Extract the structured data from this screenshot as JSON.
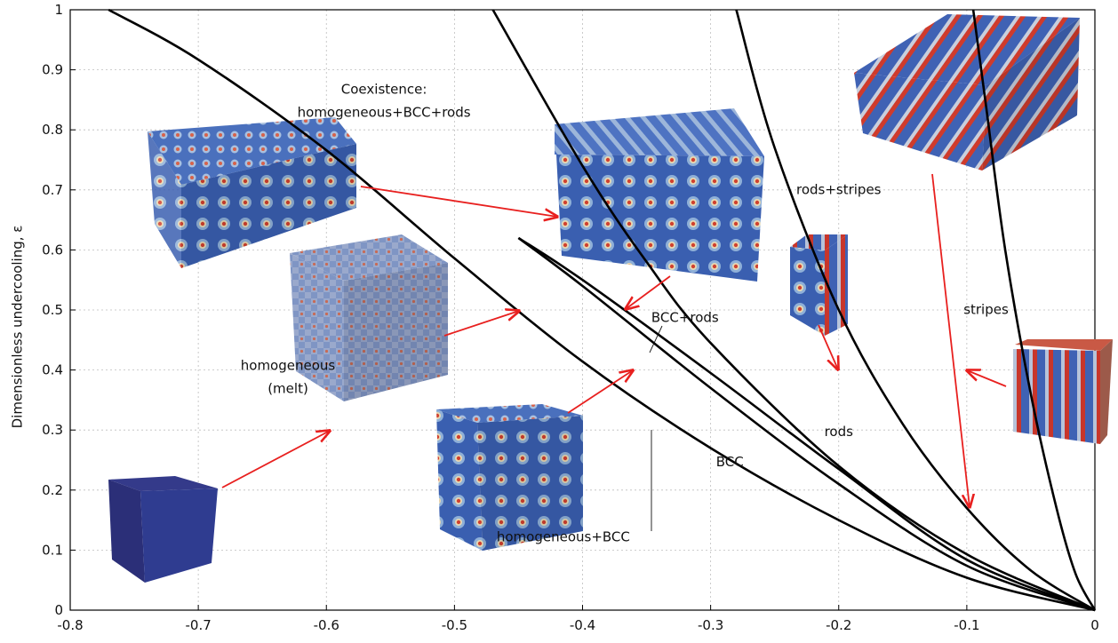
{
  "chart_data": {
    "type": "line",
    "title": "",
    "xlabel": "",
    "ylabel": "Dimensionless undercooling, ε",
    "xlim": [
      -0.8,
      0
    ],
    "ylim": [
      0,
      1
    ],
    "xticks": [
      "-0.8",
      "-0.7",
      "-0.6",
      "-0.5",
      "-0.4",
      "-0.3",
      "-0.2",
      "-0.1",
      "0"
    ],
    "yticks": [
      "0",
      "0.1",
      "0.2",
      "0.3",
      "0.4",
      "0.5",
      "0.6",
      "0.7",
      "0.8",
      "0.9",
      "1"
    ],
    "grid": true,
    "series": [
      {
        "x": [
          -0.77,
          -0.7,
          -0.6,
          -0.5,
          -0.4,
          -0.3,
          -0.2,
          -0.1,
          0
        ],
        "y": [
          1.0,
          0.917,
          0.766,
          0.586,
          0.414,
          0.27,
          0.15,
          0.054,
          0
        ]
      },
      {
        "x": [
          -0.45,
          -0.4,
          -0.3,
          -0.2,
          -0.1,
          0
        ],
        "y": [
          0.62,
          0.55,
          0.395,
          0.235,
          0.084,
          0
        ]
      },
      {
        "x": [
          -0.45,
          -0.4,
          -0.3,
          -0.2,
          -0.1,
          0
        ],
        "y": [
          0.62,
          0.54,
          0.37,
          0.21,
          0.074,
          0
        ]
      },
      {
        "x": [
          -0.47,
          -0.4,
          -0.35,
          -0.3,
          -0.2,
          -0.1,
          0
        ],
        "y": [
          1.0,
          0.74,
          0.58,
          0.445,
          0.24,
          0.093,
          0
        ]
      },
      {
        "x": [
          -0.28,
          -0.25,
          -0.2,
          -0.15,
          -0.1,
          -0.05,
          0
        ],
        "y": [
          1.0,
          0.77,
          0.5,
          0.31,
          0.17,
          0.066,
          0
        ]
      },
      {
        "x": [
          -0.095,
          -0.085,
          -0.07,
          -0.05,
          -0.03,
          -0.015,
          0
        ],
        "y": [
          1.0,
          0.84,
          0.6,
          0.36,
          0.17,
          0.06,
          0
        ]
      }
    ],
    "annotations": [
      {
        "text": "Coexistence:",
        "x": -0.555,
        "y": 0.86
      },
      {
        "text": "homogeneous+BCC+rods",
        "x": -0.555,
        "y": 0.822
      },
      {
        "text": "homogeneous",
        "x": -0.63,
        "y": 0.4
      },
      {
        "text": "(melt)",
        "x": -0.63,
        "y": 0.362
      },
      {
        "text": "BCC+rods",
        "x": -0.32,
        "y": 0.48
      },
      {
        "text": "rods+stripes",
        "x": -0.2,
        "y": 0.693
      },
      {
        "text": "stripes",
        "x": -0.085,
        "y": 0.493
      },
      {
        "text": "rods",
        "x": -0.2,
        "y": 0.29
      },
      {
        "text": "BCC",
        "x": -0.285,
        "y": 0.24
      },
      {
        "text": "homogeneous+BCC",
        "x": -0.415,
        "y": 0.115
      }
    ]
  }
}
